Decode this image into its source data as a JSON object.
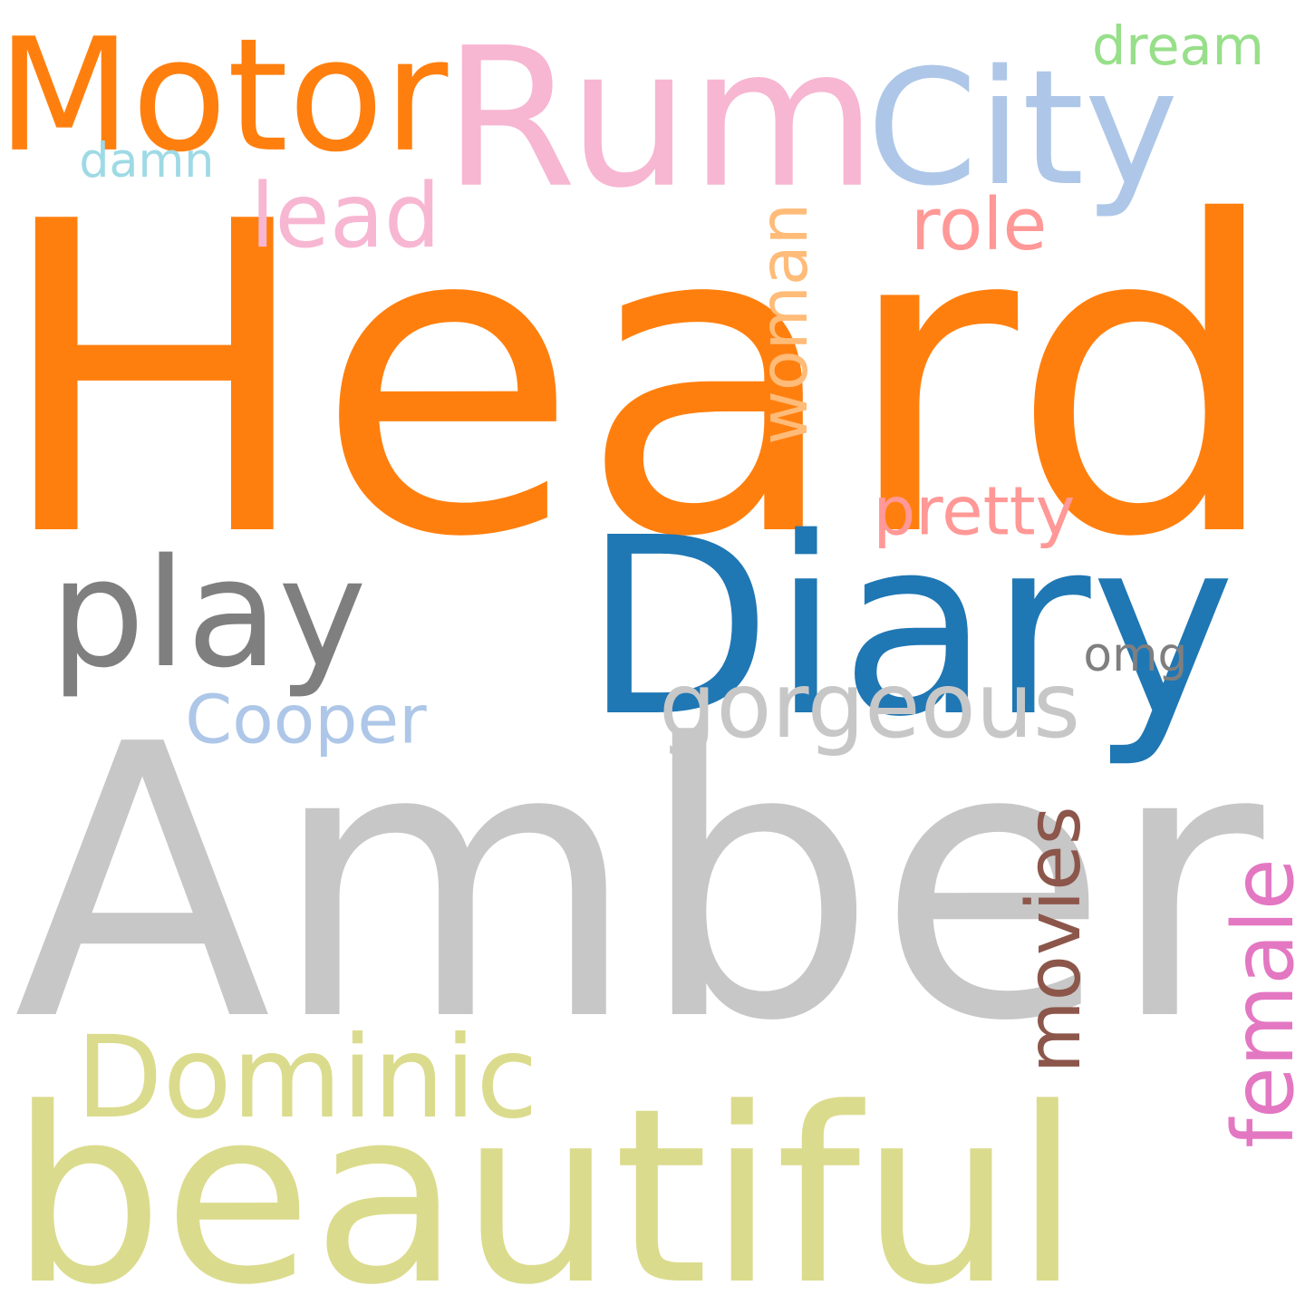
{
  "words": [
    {
      "id": "heard",
      "text": "Heard",
      "color": "#ff7f0e",
      "vertical": false
    },
    {
      "id": "amber",
      "text": "Amber",
      "color": "#c7c7c7",
      "vertical": false
    },
    {
      "id": "diary",
      "text": "Diary",
      "color": "#1f77b4",
      "vertical": false
    },
    {
      "id": "beautiful",
      "text": "beautiful",
      "color": "#dbdb8d",
      "vertical": false
    },
    {
      "id": "rum",
      "text": "Rum",
      "color": "#f7b6d2",
      "vertical": false
    },
    {
      "id": "motor",
      "text": "Motor",
      "color": "#ff7f0e",
      "vertical": false
    },
    {
      "id": "city",
      "text": "City",
      "color": "#aec7e8",
      "vertical": false
    },
    {
      "id": "play",
      "text": "play",
      "color": "#7f7f7f",
      "vertical": false
    },
    {
      "id": "dominic",
      "text": "Dominic",
      "color": "#dbdb8d",
      "vertical": false
    },
    {
      "id": "cooper",
      "text": "Cooper",
      "color": "#aec7e8",
      "vertical": false
    },
    {
      "id": "gorgeous",
      "text": "gorgeous",
      "color": "#c7c7c7",
      "vertical": false
    },
    {
      "id": "movies",
      "text": "movies",
      "color": "#8c564b",
      "vertical": true
    },
    {
      "id": "female",
      "text": "female",
      "color": "#e377c2",
      "vertical": true
    },
    {
      "id": "woman",
      "text": "woman",
      "color": "#ffbb78",
      "vertical": true
    },
    {
      "id": "role",
      "text": "role",
      "color": "#ff9896",
      "vertical": false
    },
    {
      "id": "lead",
      "text": "lead",
      "color": "#f7b6d2",
      "vertical": false
    },
    {
      "id": "pretty",
      "text": "pretty",
      "color": "#ff9896",
      "vertical": false
    },
    {
      "id": "dream",
      "text": "dream",
      "color": "#98df8a",
      "vertical": false
    },
    {
      "id": "damn",
      "text": "damn",
      "color": "#9edae5",
      "vertical": false
    },
    {
      "id": "omg",
      "text": "omg",
      "color": "#7f7f7f",
      "vertical": false
    }
  ]
}
